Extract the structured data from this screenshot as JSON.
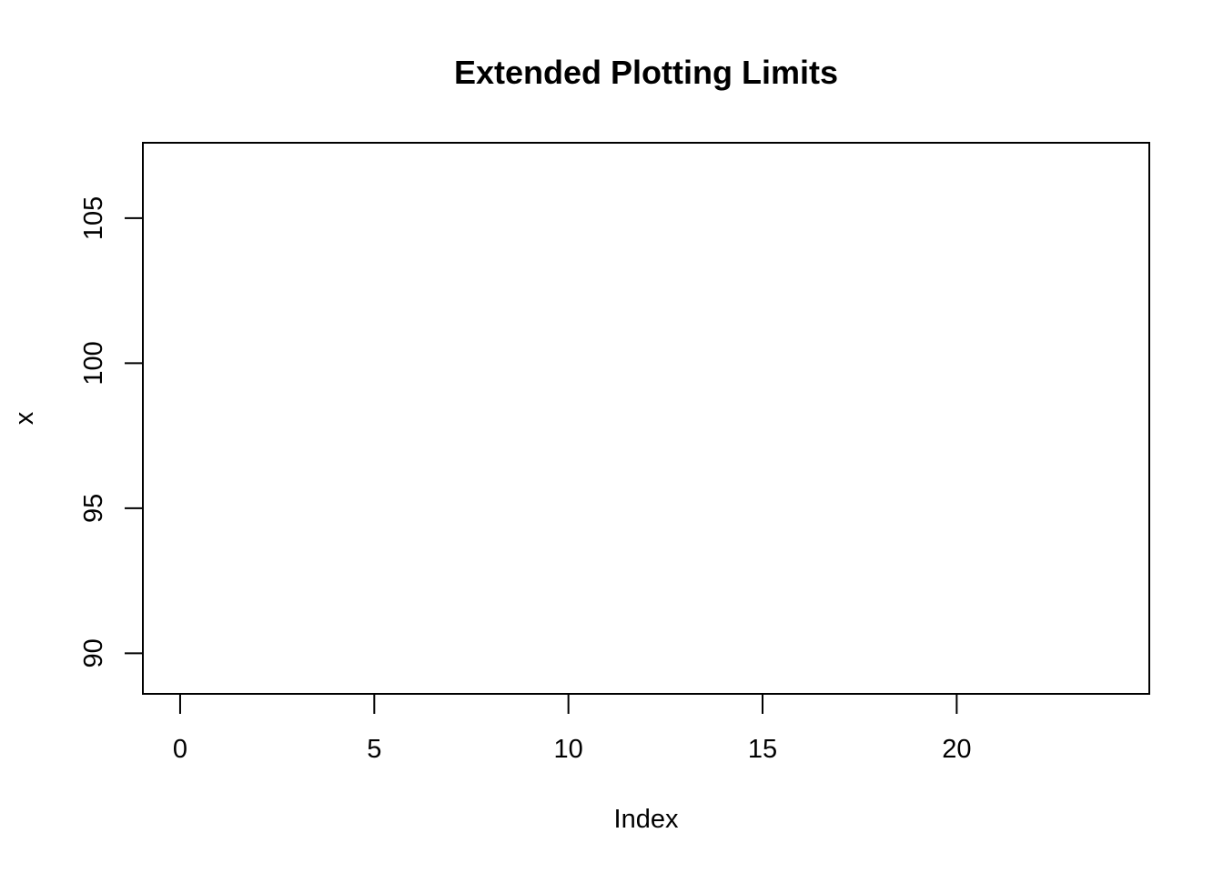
{
  "chart_data": {
    "type": "scatter",
    "title": "Extended Plotting Limits",
    "xlabel": "Index",
    "ylabel": "x",
    "xlim": [
      -0.96,
      24.96
    ],
    "ylim": [
      88.6,
      107.6
    ],
    "x_ticks": [
      0,
      5,
      10,
      15,
      20
    ],
    "y_ticks": [
      90,
      95,
      100,
      105
    ],
    "x_tick_labels": [
      "0",
      "5",
      "10",
      "15",
      "20"
    ],
    "y_tick_labels": [
      "90",
      "95",
      "100",
      "105"
    ],
    "series": [],
    "grid": false,
    "legend": "none"
  }
}
